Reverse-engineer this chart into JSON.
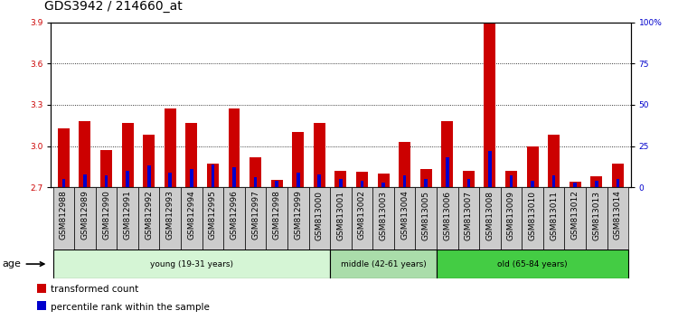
{
  "title": "GDS3942 / 214660_at",
  "samples": [
    "GSM812988",
    "GSM812989",
    "GSM812990",
    "GSM812991",
    "GSM812992",
    "GSM812993",
    "GSM812994",
    "GSM812995",
    "GSM812996",
    "GSM812997",
    "GSM812998",
    "GSM812999",
    "GSM813000",
    "GSM813001",
    "GSM813002",
    "GSM813003",
    "GSM813004",
    "GSM813005",
    "GSM813006",
    "GSM813007",
    "GSM813008",
    "GSM813009",
    "GSM813010",
    "GSM813011",
    "GSM813012",
    "GSM813013",
    "GSM813014"
  ],
  "transformed_count": [
    3.13,
    3.18,
    2.97,
    3.17,
    3.08,
    3.27,
    3.17,
    2.87,
    3.27,
    2.92,
    2.75,
    3.1,
    3.17,
    2.82,
    2.81,
    2.8,
    3.03,
    2.83,
    3.18,
    2.82,
    3.9,
    2.82,
    3.0,
    3.08,
    2.74,
    2.78,
    2.87
  ],
  "percentile_rank": [
    5,
    8,
    7,
    10,
    13,
    9,
    11,
    14,
    12,
    6,
    4,
    9,
    8,
    5,
    4,
    3,
    7,
    5,
    18,
    5,
    22,
    7,
    4,
    7,
    3,
    4,
    5
  ],
  "y_min": 2.7,
  "y_max": 3.9,
  "y_ticks": [
    2.7,
    3.0,
    3.3,
    3.6,
    3.9
  ],
  "right_y_ticks": [
    0,
    25,
    50,
    75,
    100
  ],
  "right_y_labels": [
    "0",
    "25",
    "50",
    "75",
    "100%"
  ],
  "groups": [
    {
      "label": "young (19-31 years)",
      "start": 0,
      "end": 13,
      "color": "#d5f5d5"
    },
    {
      "label": "middle (42-61 years)",
      "start": 13,
      "end": 18,
      "color": "#aaddaa"
    },
    {
      "label": "old (65-84 years)",
      "start": 18,
      "end": 27,
      "color": "#44cc44"
    }
  ],
  "bar_color": "#cc0000",
  "percentile_color": "#0000cc",
  "bar_width": 0.55,
  "background_color": "#ffffff",
  "plot_bg_color": "#ffffff",
  "xtick_bg_color": "#cccccc",
  "title_fontsize": 10,
  "tick_fontsize": 6.5,
  "label_fontsize": 8,
  "age_label": "age",
  "legend_items": [
    {
      "color": "#cc0000",
      "label": "transformed count"
    },
    {
      "color": "#0000cc",
      "label": "percentile rank within the sample"
    }
  ]
}
